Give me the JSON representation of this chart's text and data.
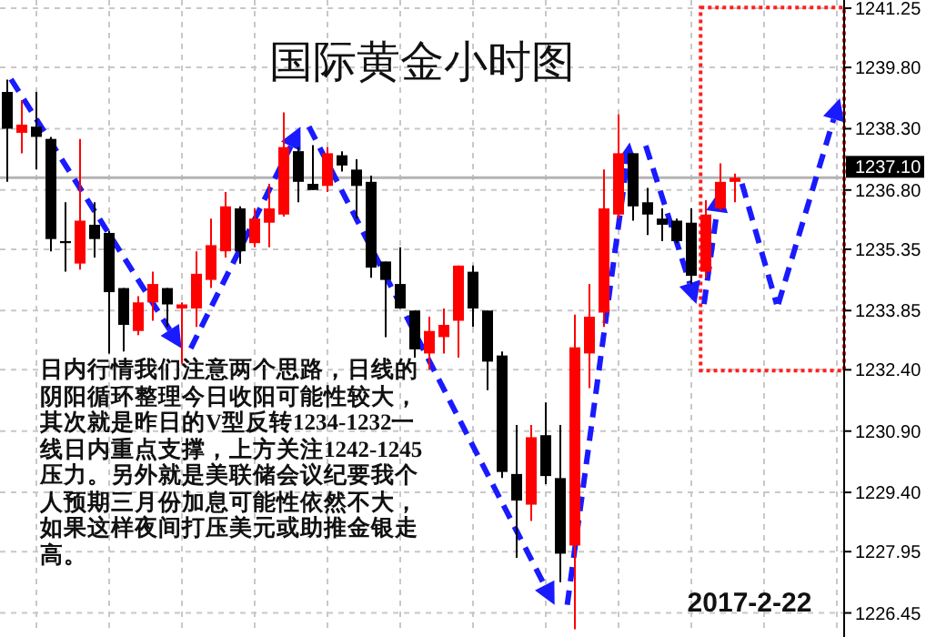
{
  "chart_data": {
    "type": "candlestick",
    "title": "国际黄金小时图",
    "annotations": [
      "日内行情我们注意两个思路，日线的阴阳循环整理今日收阳可能性较大，其次就是昨日的V型反转1234-1232一线日内重点支撑，上方关注1242-1245压力。另外就是美联储会议纪要我个人预期三月份加息可能性依然不大，如果这样夜间打压美元或助推金银走高。",
      "2017-2-22"
    ],
    "categories": [
      null,
      null,
      null,
      null,
      null,
      null,
      null,
      null,
      null,
      null,
      null,
      null,
      null,
      null,
      null,
      null,
      null,
      null,
      null,
      null,
      null,
      null,
      null,
      null,
      null,
      null,
      null,
      null,
      null,
      null,
      null,
      null,
      null,
      null,
      null,
      null,
      null,
      null,
      null,
      null,
      null,
      null,
      null,
      null,
      null,
      null,
      null,
      null,
      null,
      null,
      null,
      null,
      null,
      null,
      null,
      null,
      null,
      null
    ],
    "ohlc": [
      [
        1239.2,
        1239.5,
        1237.0,
        1238.3
      ],
      [
        1238.2,
        1239.0,
        1237.7,
        1238.4
      ],
      [
        1238.35,
        1239.2,
        1237.3,
        1238.1
      ],
      [
        1238.05,
        1238.1,
        1235.3,
        1235.6
      ],
      [
        1235.55,
        1236.5,
        1234.8,
        1235.5
      ],
      [
        1235.0,
        1238.05,
        1234.85,
        1236.05
      ],
      [
        1235.95,
        1236.5,
        1235.15,
        1235.6
      ],
      [
        1235.75,
        1235.8,
        1232.8,
        1234.3
      ],
      [
        1234.4,
        1234.4,
        1232.85,
        1233.5
      ],
      [
        1233.35,
        1234.2,
        1233.25,
        1234.05
      ],
      [
        1234.05,
        1234.8,
        1233.6,
        1234.5
      ],
      [
        1234.4,
        1234.4,
        1233.45,
        1234.0
      ],
      [
        1233.9,
        1234.05,
        1232.55,
        1234.0
      ],
      [
        1233.9,
        1235.3,
        1233.45,
        1234.75
      ],
      [
        1234.6,
        1236.1,
        1234.4,
        1235.45
      ],
      [
        1235.3,
        1236.75,
        1235.15,
        1236.4
      ],
      [
        1236.35,
        1236.4,
        1235.0,
        1235.3
      ],
      [
        1235.5,
        1236.35,
        1235.4,
        1236.1
      ],
      [
        1236.0,
        1236.95,
        1235.4,
        1236.35
      ],
      [
        1236.2,
        1238.7,
        1236.15,
        1237.85
      ],
      [
        1237.75,
        1237.85,
        1236.5,
        1237.0
      ],
      [
        1236.95,
        1237.9,
        1236.8,
        1236.8
      ],
      [
        1236.9,
        1237.85,
        1236.75,
        1237.7
      ],
      [
        1237.65,
        1237.75,
        1237.25,
        1237.4
      ],
      [
        1237.3,
        1237.55,
        1236.1,
        1236.9
      ],
      [
        1237.0,
        1237.15,
        1234.65,
        1234.9
      ],
      [
        1235.05,
        1235.05,
        1233.2,
        1234.6
      ],
      [
        1234.5,
        1235.4,
        1233.9,
        1233.9
      ],
      [
        1233.85,
        1233.85,
        1232.7,
        1232.9
      ],
      [
        1232.8,
        1233.7,
        1232.4,
        1233.35
      ],
      [
        1233.2,
        1233.9,
        1232.8,
        1233.5
      ],
      [
        1233.6,
        1234.95,
        1232.7,
        1234.95
      ],
      [
        1234.8,
        1234.95,
        1233.45,
        1233.9
      ],
      [
        1233.85,
        1233.85,
        1231.9,
        1232.6
      ],
      [
        1232.75,
        1232.85,
        1229.75,
        1229.9
      ],
      [
        1229.85,
        1231.05,
        1227.8,
        1229.2
      ],
      [
        1229.1,
        1231.05,
        1228.7,
        1230.75
      ],
      [
        1230.8,
        1231.6,
        1229.6,
        1229.8
      ],
      [
        1229.75,
        1231.05,
        1227.2,
        1227.9
      ],
      [
        1228.1,
        1233.75,
        1226.05,
        1232.95
      ],
      [
        1232.8,
        1234.5,
        1231.95,
        1233.7
      ],
      [
        1233.8,
        1237.3,
        1233.45,
        1236.35
      ],
      [
        1236.2,
        1238.65,
        1236.1,
        1237.7
      ],
      [
        1237.7,
        1237.7,
        1236.05,
        1236.4
      ],
      [
        1236.5,
        1236.85,
        1235.7,
        1236.2
      ],
      [
        1236.1,
        1236.35,
        1235.55,
        1235.95
      ],
      [
        1236.05,
        1236.1,
        1235.5,
        1235.55
      ],
      [
        1236.0,
        1236.35,
        1234.5,
        1234.7
      ],
      [
        1234.8,
        1236.55,
        1234.65,
        1236.2
      ],
      [
        1236.35,
        1237.45,
        1236.3,
        1237.0
      ],
      [
        1237.0,
        1237.2,
        1236.5,
        1237.1
      ],
      null,
      null,
      null,
      null,
      null,
      null,
      null
    ],
    "colors": [
      "#000000",
      "#ff0000",
      "#000000",
      "#000000",
      "#000000",
      "#ff0000",
      "#000000",
      "#000000",
      "#000000",
      "#ff0000",
      "#ff0000",
      "#000000",
      "#ff0000",
      "#ff0000",
      "#ff0000",
      "#ff0000",
      "#000000",
      "#ff0000",
      "#ff0000",
      "#ff0000",
      "#000000",
      "#000000",
      "#ff0000",
      "#000000",
      "#000000",
      "#000000",
      "#000000",
      "#000000",
      "#000000",
      "#ff0000",
      "#ff0000",
      "#ff0000",
      "#000000",
      "#000000",
      "#000000",
      "#000000",
      "#ff0000",
      "#000000",
      "#000000",
      "#ff0000",
      "#ff0000",
      "#ff0000",
      "#ff0000",
      "#000000",
      "#000000",
      "#000000",
      "#000000",
      "#000000",
      "#ff0000",
      "#ff0000",
      "#ff0000",
      null,
      null,
      null,
      null,
      null,
      null,
      null
    ],
    "ylim": [
      1225.95,
      1241.45
    ],
    "yticks": [
      1241.25,
      {
        "value": 1239.8,
        "label": "1239.80"
      },
      {
        "value": 1238.3,
        "label": "1238.30"
      },
      {
        "value": 1236.8,
        "label": "1236.80"
      },
      1235.35,
      1233.85,
      {
        "value": 1232.4,
        "label": "1232.40"
      },
      {
        "value": 1230.9,
        "label": "1230.90"
      },
      {
        "value": 1229.4,
        "label": "1229.40"
      },
      1227.95,
      1226.45
    ],
    "ref_lines": [
      {
        "axis": "y",
        "value": 1237.1,
        "label": "1237.10",
        "color": "#b4b4b4"
      }
    ],
    "grid": true,
    "tick_labels": "y"
  }
}
